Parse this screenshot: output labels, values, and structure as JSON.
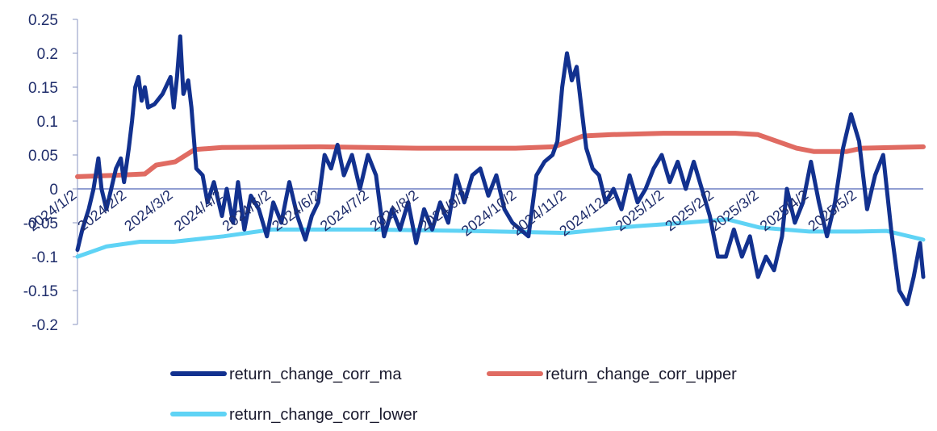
{
  "chart_data": {
    "type": "line",
    "title": "",
    "xlabel": "",
    "ylabel": "",
    "ylim": [
      -0.2,
      0.25
    ],
    "yticks": [
      "0.25",
      "0.2",
      "0.15",
      "0.1",
      "0.05",
      "0",
      "-0.05",
      "-0.1",
      "-0.15",
      "-0.2"
    ],
    "xticks": [
      "2024/1/2",
      "2024/2/2",
      "2024/3/2",
      "2024/4/2",
      "2024/5/2",
      "2024/6/2",
      "2024/7/2",
      "2024/8/2",
      "2024/9/2",
      "2024/10/2",
      "2024/11/2",
      "2024/12/2",
      "2025/1/2",
      "2025/2/2",
      "2025/3/2",
      "2025/4/2",
      "2025/5/2"
    ],
    "x_start": "2024/1/2",
    "x_end": "2025/6/12",
    "legend_position": "bottom",
    "grid": false,
    "series": [
      {
        "name": "return_change_corr_ma",
        "color": "#12318f",
        "points": [
          [
            "2024/1/2",
            -0.09
          ],
          [
            "2024/1/5",
            -0.06
          ],
          [
            "2024/1/9",
            -0.03
          ],
          [
            "2024/1/12",
            0.0
          ],
          [
            "2024/1/15",
            0.045
          ],
          [
            "2024/1/17",
            0.0
          ],
          [
            "2024/1/20",
            -0.03
          ],
          [
            "2024/1/23",
            0.0
          ],
          [
            "2024/1/26",
            0.03
          ],
          [
            "2024/1/29",
            0.045
          ],
          [
            "2024/1/31",
            0.01
          ],
          [
            "2024/2/3",
            0.06
          ],
          [
            "2024/2/5",
            0.1
          ],
          [
            "2024/2/7",
            0.15
          ],
          [
            "2024/2/9",
            0.165
          ],
          [
            "2024/2/11",
            0.13
          ],
          [
            "2024/2/13",
            0.15
          ],
          [
            "2024/2/15",
            0.12
          ],
          [
            "2024/2/19",
            0.125
          ],
          [
            "2024/2/24",
            0.14
          ],
          [
            "2024/2/29",
            0.165
          ],
          [
            "2024/3/2",
            0.12
          ],
          [
            "2024/3/4",
            0.165
          ],
          [
            "2024/3/6",
            0.225
          ],
          [
            "2024/3/8",
            0.14
          ],
          [
            "2024/3/11",
            0.16
          ],
          [
            "2024/3/13",
            0.12
          ],
          [
            "2024/3/16",
            0.03
          ],
          [
            "2024/3/20",
            0.02
          ],
          [
            "2024/3/23",
            -0.02
          ],
          [
            "2024/3/27",
            0.01
          ],
          [
            "2024/4/1",
            -0.04
          ],
          [
            "2024/4/4",
            0.0
          ],
          [
            "2024/4/8",
            -0.05
          ],
          [
            "2024/4/11",
            0.01
          ],
          [
            "2024/4/15",
            -0.06
          ],
          [
            "2024/4/19",
            -0.01
          ],
          [
            "2024/4/24",
            -0.03
          ],
          [
            "2024/4/29",
            -0.07
          ],
          [
            "2024/5/3",
            -0.02
          ],
          [
            "2024/5/8",
            -0.05
          ],
          [
            "2024/5/13",
            0.01
          ],
          [
            "2024/5/18",
            -0.04
          ],
          [
            "2024/5/23",
            -0.075
          ],
          [
            "2024/5/27",
            -0.04
          ],
          [
            "2024/5/31",
            -0.02
          ],
          [
            "2024/6/4",
            0.05
          ],
          [
            "2024/6/8",
            0.03
          ],
          [
            "2024/6/12",
            0.065
          ],
          [
            "2024/6/16",
            0.02
          ],
          [
            "2024/6/21",
            0.05
          ],
          [
            "2024/6/26",
            0.0
          ],
          [
            "2024/7/1",
            0.05
          ],
          [
            "2024/7/6",
            0.02
          ],
          [
            "2024/7/11",
            -0.07
          ],
          [
            "2024/7/16",
            -0.03
          ],
          [
            "2024/7/21",
            -0.06
          ],
          [
            "2024/7/26",
            -0.02
          ],
          [
            "2024/7/31",
            -0.08
          ],
          [
            "2024/8/5",
            -0.03
          ],
          [
            "2024/8/10",
            -0.06
          ],
          [
            "2024/8/15",
            -0.02
          ],
          [
            "2024/8/20",
            -0.05
          ],
          [
            "2024/8/25",
            0.02
          ],
          [
            "2024/8/30",
            -0.02
          ],
          [
            "2024/9/4",
            0.02
          ],
          [
            "2024/9/9",
            0.03
          ],
          [
            "2024/9/14",
            -0.01
          ],
          [
            "2024/9/19",
            0.02
          ],
          [
            "2024/9/24",
            -0.03
          ],
          [
            "2024/9/29",
            -0.05
          ],
          [
            "2024/10/4",
            -0.06
          ],
          [
            "2024/10/9",
            -0.07
          ],
          [
            "2024/10/14",
            0.02
          ],
          [
            "2024/10/19",
            0.04
          ],
          [
            "2024/10/24",
            0.05
          ],
          [
            "2024/10/27",
            0.07
          ],
          [
            "2024/10/30",
            0.15
          ],
          [
            "2024/11/2",
            0.2
          ],
          [
            "2024/11/5",
            0.16
          ],
          [
            "2024/11/8",
            0.18
          ],
          [
            "2024/11/11",
            0.12
          ],
          [
            "2024/11/14",
            0.06
          ],
          [
            "2024/11/18",
            0.03
          ],
          [
            "2024/11/22",
            0.02
          ],
          [
            "2024/11/26",
            -0.02
          ],
          [
            "2024/12/1",
            0.0
          ],
          [
            "2024/12/6",
            -0.03
          ],
          [
            "2024/12/11",
            0.02
          ],
          [
            "2024/12/16",
            -0.02
          ],
          [
            "2024/12/21",
            0.0
          ],
          [
            "2024/12/26",
            0.03
          ],
          [
            "2024/12/31",
            0.05
          ],
          [
            "2025/1/5",
            0.01
          ],
          [
            "2025/1/10",
            0.04
          ],
          [
            "2025/1/15",
            0.0
          ],
          [
            "2025/1/20",
            0.04
          ],
          [
            "2025/1/25",
            0.0
          ],
          [
            "2025/1/30",
            -0.04
          ],
          [
            "2025/2/4",
            -0.1
          ],
          [
            "2025/2/9",
            -0.1
          ],
          [
            "2025/2/14",
            -0.06
          ],
          [
            "2025/2/19",
            -0.1
          ],
          [
            "2025/2/24",
            -0.07
          ],
          [
            "2025/3/1",
            -0.13
          ],
          [
            "2025/3/6",
            -0.1
          ],
          [
            "2025/3/11",
            -0.12
          ],
          [
            "2025/3/16",
            -0.07
          ],
          [
            "2025/3/19",
            0.0
          ],
          [
            "2025/3/24",
            -0.05
          ],
          [
            "2025/3/29",
            -0.02
          ],
          [
            "2025/4/3",
            0.04
          ],
          [
            "2025/4/8",
            -0.02
          ],
          [
            "2025/4/13",
            -0.07
          ],
          [
            "2025/4/18",
            -0.02
          ],
          [
            "2025/4/23",
            0.06
          ],
          [
            "2025/4/28",
            0.11
          ],
          [
            "2025/5/3",
            0.07
          ],
          [
            "2025/5/8",
            -0.03
          ],
          [
            "2025/5/13",
            0.02
          ],
          [
            "2025/5/18",
            0.05
          ],
          [
            "2025/5/23",
            -0.06
          ],
          [
            "2025/5/28",
            -0.15
          ],
          [
            "2025/6/2",
            -0.17
          ],
          [
            "2025/6/6",
            -0.13
          ],
          [
            "2025/6/10",
            -0.08
          ],
          [
            "2025/6/12",
            -0.13
          ]
        ]
      },
      {
        "name": "return_change_corr_upper",
        "color": "#e06b62",
        "points": [
          [
            "2024/1/2",
            0.018
          ],
          [
            "2024/1/25",
            0.02
          ],
          [
            "2024/2/13",
            0.022
          ],
          [
            "2024/2/20",
            0.035
          ],
          [
            "2024/3/3",
            0.04
          ],
          [
            "2024/3/15",
            0.058
          ],
          [
            "2024/4/1",
            0.061
          ],
          [
            "2024/6/1",
            0.062
          ],
          [
            "2024/8/1",
            0.06
          ],
          [
            "2024/10/1",
            0.06
          ],
          [
            "2024/10/25",
            0.062
          ],
          [
            "2024/11/12",
            0.078
          ],
          [
            "2024/11/30",
            0.08
          ],
          [
            "2025/1/1",
            0.082
          ],
          [
            "2025/2/15",
            0.082
          ],
          [
            "2025/3/1",
            0.08
          ],
          [
            "2025/3/25",
            0.06
          ],
          [
            "2025/4/5",
            0.055
          ],
          [
            "2025/4/25",
            0.055
          ],
          [
            "2025/5/5",
            0.06
          ],
          [
            "2025/6/12",
            0.062
          ]
        ]
      },
      {
        "name": "return_change_corr_lower",
        "color": "#5fd3f5",
        "points": [
          [
            "2024/1/2",
            -0.1
          ],
          [
            "2024/1/20",
            -0.085
          ],
          [
            "2024/2/10",
            -0.078
          ],
          [
            "2024/3/2",
            -0.078
          ],
          [
            "2024/4/2",
            -0.07
          ],
          [
            "2024/5/2",
            -0.06
          ],
          [
            "2024/7/2",
            -0.06
          ],
          [
            "2024/9/2",
            -0.062
          ],
          [
            "2024/11/2",
            -0.065
          ],
          [
            "2024/12/15",
            -0.055
          ],
          [
            "2025/1/15",
            -0.05
          ],
          [
            "2025/2/10",
            -0.045
          ],
          [
            "2025/3/2",
            -0.057
          ],
          [
            "2025/4/2",
            -0.063
          ],
          [
            "2025/5/2",
            -0.063
          ],
          [
            "2025/5/20",
            -0.062
          ],
          [
            "2025/6/12",
            -0.075
          ]
        ]
      }
    ]
  }
}
